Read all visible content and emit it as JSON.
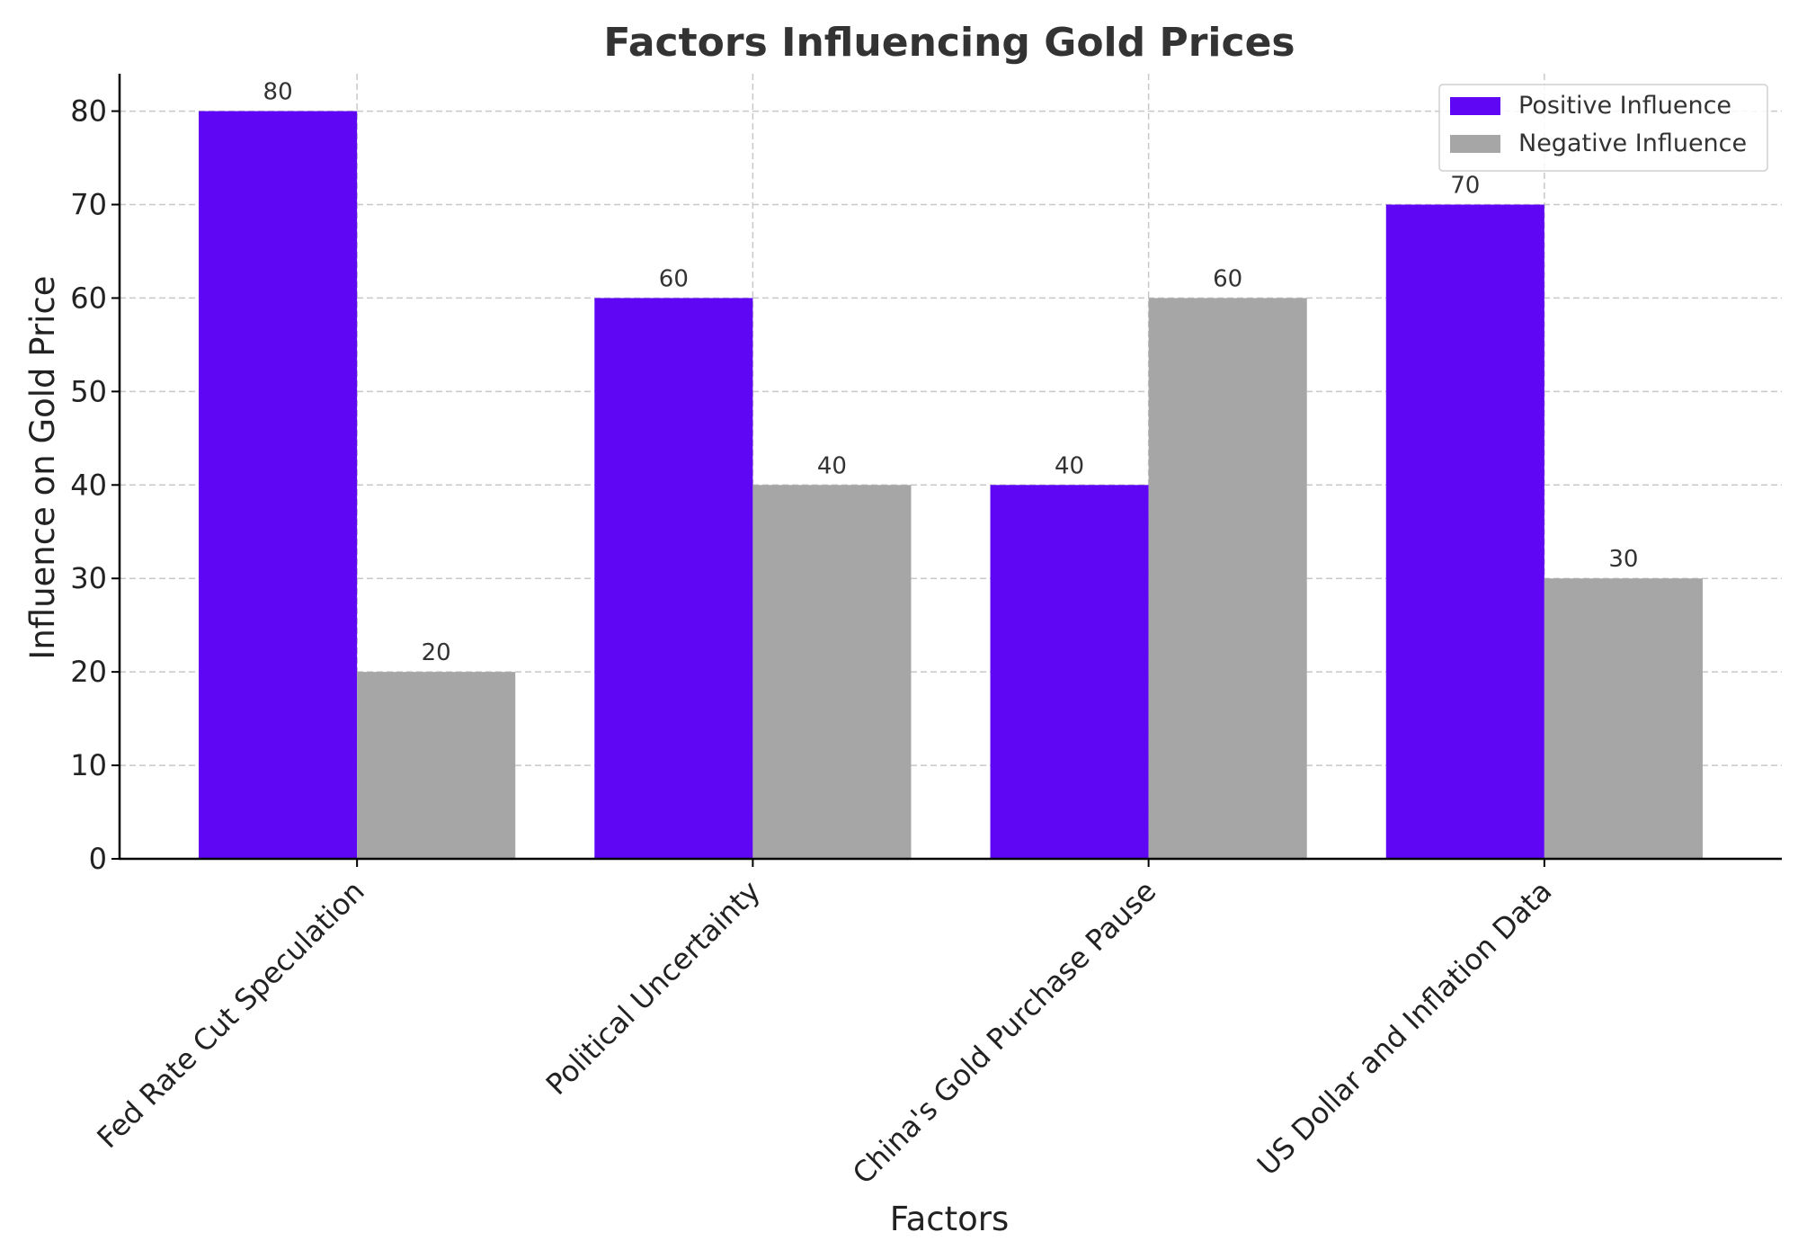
{
  "chart_data": {
    "type": "bar",
    "title": "Factors Influencing Gold Prices",
    "xlabel": "Factors",
    "ylabel": "Influence on Gold Price",
    "categories": [
      "Fed Rate Cut Speculation",
      "Political Uncertainty",
      "China's Gold Purchase Pause",
      "US Dollar and Inflation Data"
    ],
    "series": [
      {
        "name": "Positive Influence",
        "color": "#5f07f5",
        "values": [
          80,
          60,
          40,
          70
        ]
      },
      {
        "name": "Negative Influence",
        "color": "#a6a6a6",
        "values": [
          20,
          40,
          60,
          30
        ]
      }
    ],
    "ylim": [
      0,
      84
    ],
    "yticks": [
      0,
      10,
      20,
      30,
      40,
      50,
      60,
      70,
      80
    ],
    "grid": true,
    "legend_position": "top-right",
    "data_labels": true
  }
}
